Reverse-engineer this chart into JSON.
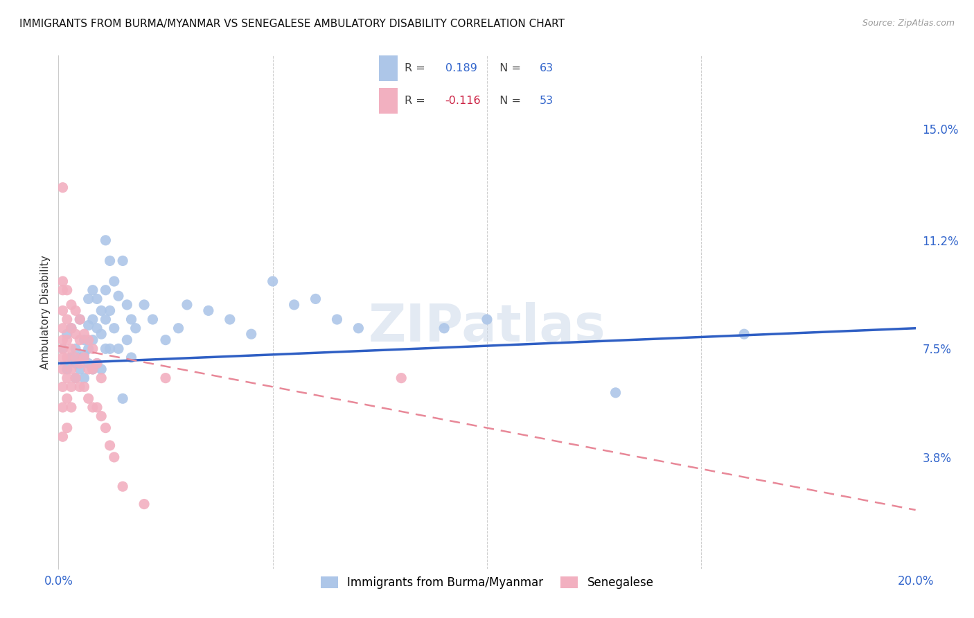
{
  "title": "IMMIGRANTS FROM BURMA/MYANMAR VS SENEGALESE AMBULATORY DISABILITY CORRELATION CHART",
  "source": "Source: ZipAtlas.com",
  "ylabel": "Ambulatory Disability",
  "ytick_vals": [
    0.038,
    0.075,
    0.112,
    0.15
  ],
  "ytick_labels": [
    "3.8%",
    "7.5%",
    "11.2%",
    "15.0%"
  ],
  "xlim": [
    0.0,
    0.2
  ],
  "ylim": [
    0.0,
    0.175
  ],
  "blue_color": "#adc6e8",
  "pink_color": "#f2b0c0",
  "trendline_blue_color": "#2f5fc4",
  "trendline_pink_color": "#e88898",
  "watermark": "ZIPatlas",
  "legend_label_blue": "Immigrants from Burma/Myanmar",
  "legend_label_pink": "Senegalese",
  "legend_r_blue": "0.189",
  "legend_n_blue": "63",
  "legend_r_pink": "-0.116",
  "legend_n_pink": "53",
  "blue_scatter_x": [
    0.001,
    0.002,
    0.002,
    0.003,
    0.003,
    0.004,
    0.004,
    0.004,
    0.005,
    0.005,
    0.005,
    0.006,
    0.006,
    0.006,
    0.007,
    0.007,
    0.007,
    0.007,
    0.008,
    0.008,
    0.008,
    0.008,
    0.009,
    0.009,
    0.009,
    0.01,
    0.01,
    0.01,
    0.011,
    0.011,
    0.011,
    0.011,
    0.012,
    0.012,
    0.012,
    0.013,
    0.013,
    0.014,
    0.014,
    0.015,
    0.015,
    0.016,
    0.016,
    0.017,
    0.017,
    0.018,
    0.02,
    0.022,
    0.025,
    0.028,
    0.03,
    0.035,
    0.04,
    0.045,
    0.05,
    0.055,
    0.06,
    0.065,
    0.07,
    0.09,
    0.1,
    0.13,
    0.16
  ],
  "blue_scatter_y": [
    0.075,
    0.068,
    0.08,
    0.072,
    0.082,
    0.075,
    0.07,
    0.065,
    0.085,
    0.072,
    0.068,
    0.078,
    0.073,
    0.065,
    0.092,
    0.083,
    0.075,
    0.07,
    0.095,
    0.085,
    0.078,
    0.068,
    0.092,
    0.082,
    0.07,
    0.088,
    0.08,
    0.068,
    0.112,
    0.095,
    0.085,
    0.075,
    0.105,
    0.088,
    0.075,
    0.098,
    0.082,
    0.093,
    0.075,
    0.105,
    0.058,
    0.09,
    0.078,
    0.085,
    0.072,
    0.082,
    0.09,
    0.085,
    0.078,
    0.082,
    0.09,
    0.088,
    0.085,
    0.08,
    0.098,
    0.09,
    0.092,
    0.085,
    0.082,
    0.082,
    0.085,
    0.06,
    0.08
  ],
  "pink_scatter_x": [
    0.001,
    0.001,
    0.001,
    0.001,
    0.001,
    0.001,
    0.001,
    0.001,
    0.001,
    0.001,
    0.001,
    0.001,
    0.002,
    0.002,
    0.002,
    0.002,
    0.002,
    0.002,
    0.002,
    0.003,
    0.003,
    0.003,
    0.003,
    0.003,
    0.003,
    0.004,
    0.004,
    0.004,
    0.004,
    0.005,
    0.005,
    0.005,
    0.005,
    0.006,
    0.006,
    0.006,
    0.007,
    0.007,
    0.007,
    0.008,
    0.008,
    0.008,
    0.009,
    0.009,
    0.01,
    0.01,
    0.011,
    0.012,
    0.013,
    0.015,
    0.02,
    0.025,
    0.08
  ],
  "pink_scatter_y": [
    0.13,
    0.098,
    0.095,
    0.088,
    0.082,
    0.078,
    0.075,
    0.072,
    0.068,
    0.062,
    0.055,
    0.045,
    0.095,
    0.085,
    0.078,
    0.072,
    0.065,
    0.058,
    0.048,
    0.09,
    0.082,
    0.075,
    0.068,
    0.062,
    0.055,
    0.088,
    0.08,
    0.072,
    0.065,
    0.085,
    0.078,
    0.07,
    0.062,
    0.08,
    0.072,
    0.062,
    0.078,
    0.068,
    0.058,
    0.075,
    0.068,
    0.055,
    0.07,
    0.055,
    0.065,
    0.052,
    0.048,
    0.042,
    0.038,
    0.028,
    0.022,
    0.065,
    0.065
  ],
  "blue_trend_x0": 0.0,
  "blue_trend_x1": 0.2,
  "blue_trend_y0": 0.07,
  "blue_trend_y1": 0.082,
  "pink_trend_x0": 0.0,
  "pink_trend_x1": 0.2,
  "pink_trend_y0": 0.076,
  "pink_trend_y1": 0.02
}
